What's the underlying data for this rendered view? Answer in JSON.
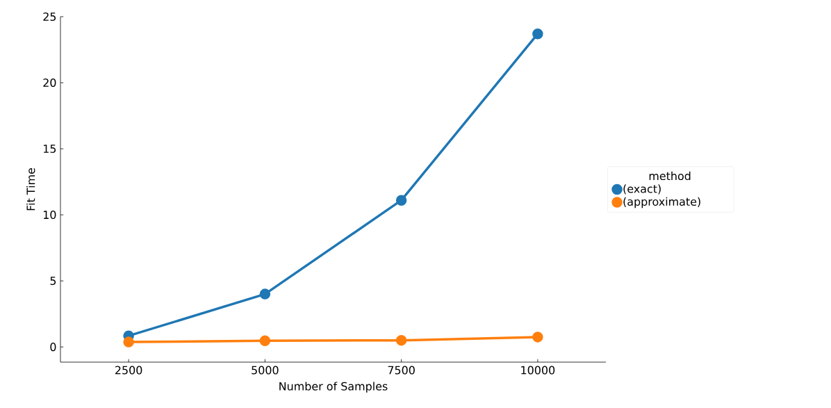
{
  "chart_data": {
    "type": "line",
    "xlabel": "Number of Samples",
    "ylabel": "Fit Time",
    "legend_title": "method",
    "categories": [
      "2500",
      "5000",
      "7500",
      "10000"
    ],
    "series": [
      {
        "name": "(exact)",
        "color": "#1f77b4",
        "values": [
          0.84,
          4.0,
          11.1,
          23.7
        ]
      },
      {
        "name": "(approximate)",
        "color": "#ff7f0e",
        "values": [
          0.37,
          0.47,
          0.5,
          0.75
        ]
      }
    ],
    "ylim": [
      -1.15,
      25
    ],
    "yticks": [
      0,
      5,
      10,
      15,
      20,
      25
    ],
    "grid": false,
    "legend": "right",
    "marker": "circle",
    "line_style": "solid"
  }
}
